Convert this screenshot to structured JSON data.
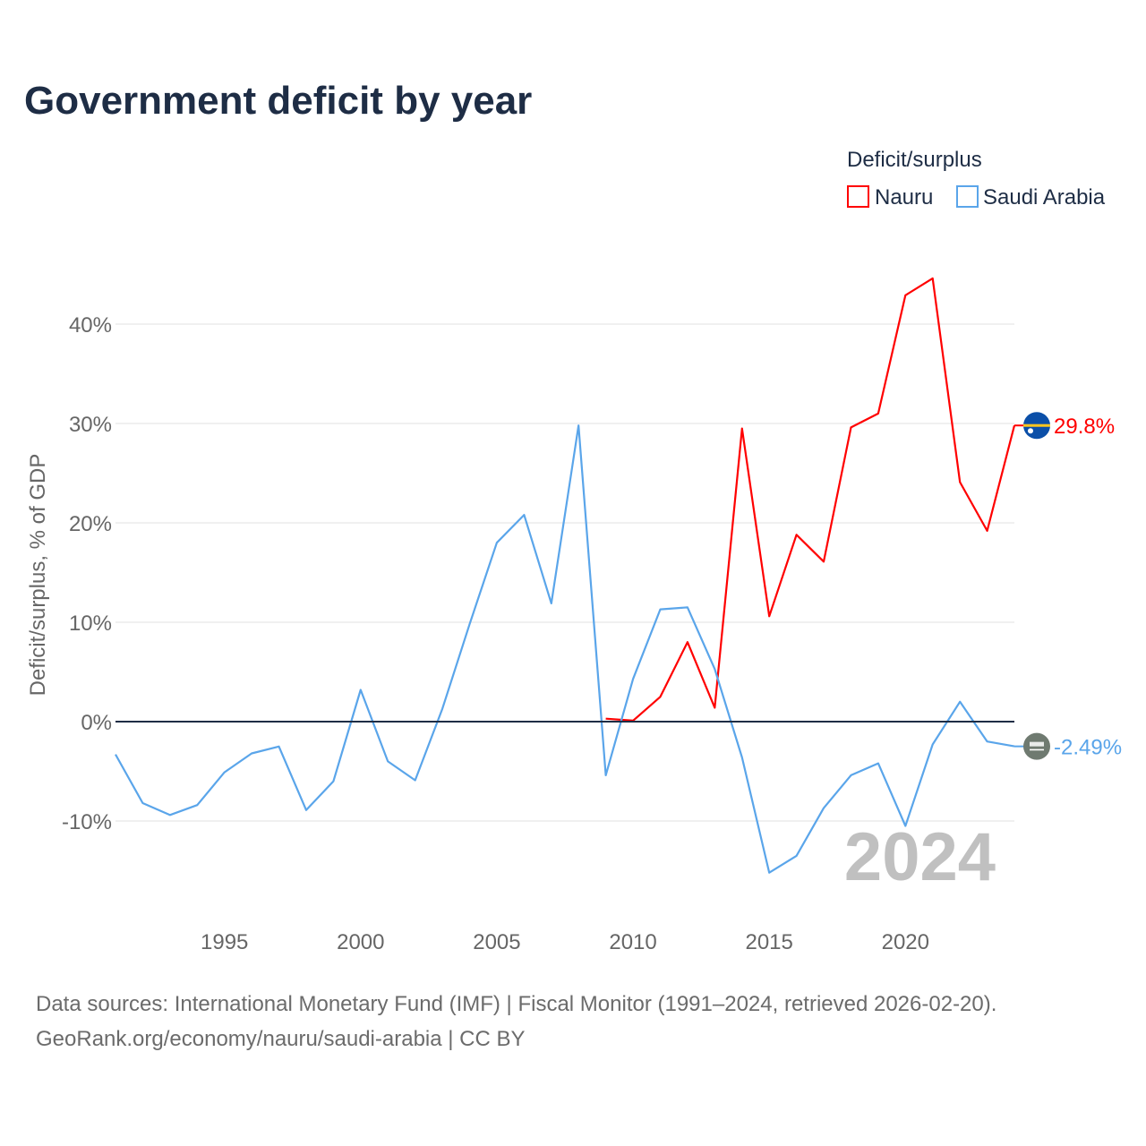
{
  "title": "Government deficit by year",
  "source_line1": "Data sources: International Monetary Fund (IMF) | Fiscal Monitor (1991–2024, retrieved 2026-02-20).",
  "source_line2": "GeoRank.org/economy/nauru/saudi-arabia | CC BY",
  "chart_data": {
    "type": "line",
    "title": "Government deficit by year",
    "xlabel": "",
    "ylabel": "Deficit/surplus, % of GDP",
    "xlim": [
      1991,
      2024
    ],
    "ylim": [
      -18.4,
      46.5
    ],
    "x_ticks": [
      1995,
      2000,
      2005,
      2010,
      2015,
      2020
    ],
    "x_tick_labels": [
      "1995",
      "2000",
      "2005",
      "2010",
      "2015",
      "2020"
    ],
    "y_ticks": [
      -10,
      0,
      10,
      20,
      30,
      40
    ],
    "y_tick_labels": [
      "-10%",
      "0%",
      "10%",
      "20%",
      "30%",
      "40%"
    ],
    "grid": true,
    "legend_title": "Deficit/surplus",
    "legend_position": "top-right",
    "year_watermark": "2024",
    "series": [
      {
        "name": "Nauru",
        "color": "#ff0000",
        "end_label": "29.8%",
        "flag": "nauru-flag",
        "x": [
          2009,
          2010,
          2011,
          2012,
          2013,
          2014,
          2015,
          2016,
          2017,
          2018,
          2019,
          2020,
          2021,
          2022,
          2023,
          2024
        ],
        "values": [
          0.3,
          0.1,
          2.5,
          8.0,
          1.4,
          29.5,
          10.6,
          18.8,
          16.1,
          29.6,
          31.0,
          42.9,
          44.6,
          24.1,
          19.2,
          29.8
        ]
      },
      {
        "name": "Saudi Arabia",
        "color": "#5aa5ea",
        "end_label": "-2.49%",
        "flag": "saudi-arabia-flag",
        "x": [
          1991,
          1992,
          1993,
          1994,
          1995,
          1996,
          1997,
          1998,
          1999,
          2000,
          2001,
          2002,
          2003,
          2004,
          2005,
          2006,
          2007,
          2008,
          2009,
          2010,
          2011,
          2012,
          2013,
          2014,
          2015,
          2016,
          2017,
          2018,
          2019,
          2020,
          2021,
          2022,
          2023,
          2024
        ],
        "values": [
          -3.3,
          -8.2,
          -9.4,
          -8.4,
          -5.1,
          -3.2,
          -2.5,
          -8.9,
          -6.0,
          3.2,
          -4.0,
          -5.9,
          1.3,
          9.8,
          18.0,
          20.8,
          11.9,
          29.8,
          -5.4,
          4.3,
          11.3,
          11.5,
          5.3,
          -3.6,
          -15.2,
          -13.5,
          -8.7,
          -5.4,
          -4.2,
          -10.5,
          -2.3,
          2.0,
          -2.0,
          -2.49
        ]
      }
    ]
  }
}
